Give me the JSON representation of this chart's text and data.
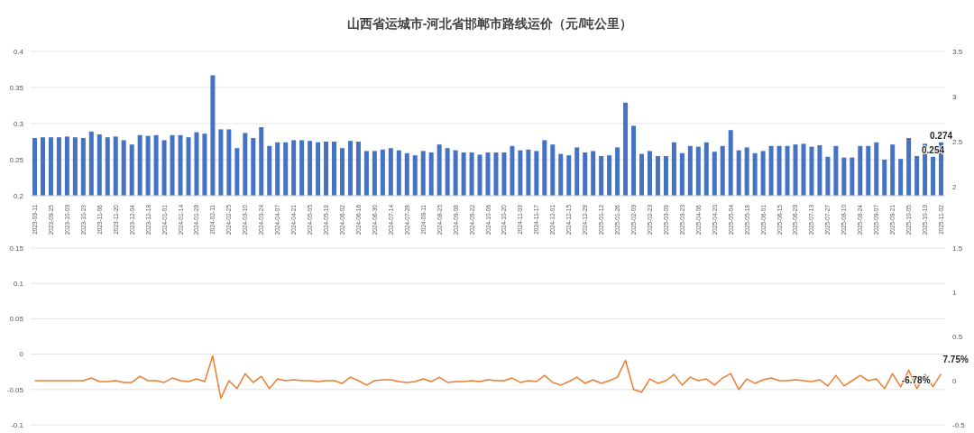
{
  "chart_data": [
    {
      "type": "bar",
      "title": "山西省运城市-河北省邯郸市路线运价（元/吨公里）",
      "categories": [
        "2023-09-11",
        null,
        "2023-09-25",
        null,
        "2023-10-09",
        null,
        "2023-10-23",
        null,
        "2023-11-06",
        null,
        "2023-11-20",
        null,
        "2023-12-04",
        null,
        "2023-12-18",
        null,
        "2024-01-01",
        null,
        "2024-01-14",
        null,
        "2024-01-28",
        null,
        "2024-02-11",
        null,
        "2024-02-25",
        null,
        "2024-03-10",
        null,
        "2024-03-24",
        null,
        "2024-04-07",
        null,
        "2024-04-21",
        null,
        "2024-05-05",
        null,
        "2024-05-19",
        null,
        "2024-06-02",
        null,
        "2024-06-16",
        null,
        "2024-06-30",
        null,
        "2024-07-14",
        null,
        "2024-07-28",
        null,
        "2024-08-11",
        null,
        "2024-08-25",
        null,
        "2024-09-08",
        null,
        "2024-09-22",
        null,
        "2024-10-06",
        null,
        "2024-10-20",
        null,
        "2024-11-03",
        null,
        "2024-11-17",
        null,
        "2024-12-01",
        null,
        "2024-12-15",
        null,
        "2024-12-29",
        null,
        "2025-01-12",
        null,
        "2025-01-26",
        null,
        "2025-02-09",
        null,
        "2025-02-23",
        null,
        "2025-03-09",
        null,
        "2025-03-23",
        null,
        "2025-04-06",
        null,
        "2025-04-20",
        null,
        "2025-05-04",
        null,
        "2025-05-18",
        null,
        "2025-06-01",
        null,
        "2025-06-15",
        null,
        "2025-06-29",
        null,
        "2025-07-13",
        null,
        "2025-07-27",
        null,
        "2025-08-10",
        null,
        "2025-08-24",
        null,
        "2025-09-07",
        null,
        "2025-09-21",
        null,
        "2025-10-05",
        null,
        "2025-10-19",
        null,
        "2025-11-02"
      ],
      "series": [
        {
          "color": "#4472c4",
          "values": [
            0.28,
            0.281,
            0.281,
            0.281,
            0.282,
            0.281,
            0.28,
            0.289,
            0.285,
            0.281,
            0.282,
            0.277,
            0.271,
            0.284,
            0.283,
            0.284,
            0.277,
            0.284,
            0.284,
            0.281,
            0.288,
            0.286,
            0.367,
            0.292,
            0.292,
            0.266,
            0.287,
            0.28,
            0.295,
            0.269,
            0.274,
            0.274,
            0.277,
            0.277,
            0.276,
            0.274,
            0.275,
            0.275,
            0.266,
            0.276,
            0.275,
            0.262,
            0.262,
            0.264,
            0.266,
            0.263,
            0.259,
            0.256,
            0.262,
            0.26,
            0.271,
            0.266,
            0.263,
            0.26,
            0.26,
            0.257,
            0.26,
            0.26,
            0.26,
            0.269,
            0.263,
            0.264,
            0.262,
            0.277,
            0.271,
            0.258,
            0.256,
            0.267,
            0.26,
            0.262,
            0.255,
            0.256,
            0.267,
            0.329,
            0.297,
            0.258,
            0.262,
            0.255,
            0.255,
            0.274,
            0.259,
            0.269,
            0.268,
            0.274,
            0.261,
            0.269,
            0.291,
            0.263,
            0.267,
            0.259,
            0.262,
            0.269,
            0.269,
            0.269,
            0.271,
            0.272,
            0.268,
            0.27,
            0.254,
            0.269,
            0.253,
            0.253,
            0.269,
            0.269,
            0.274,
            0.25,
            0.271,
            0.251,
            0.28,
            0.255,
            0.272,
            0.254,
            0.274
          ],
          "value_labels": [
            null,
            null,
            null,
            null,
            null,
            null,
            null,
            null,
            null,
            null,
            null,
            null,
            null,
            null,
            null,
            null,
            null,
            null,
            null,
            null,
            null,
            null,
            null,
            null,
            null,
            null,
            null,
            null,
            null,
            null,
            null,
            null,
            null,
            null,
            null,
            null,
            null,
            null,
            null,
            null,
            null,
            null,
            null,
            null,
            null,
            null,
            null,
            null,
            null,
            null,
            null,
            null,
            null,
            null,
            null,
            null,
            null,
            null,
            null,
            null,
            null,
            null,
            null,
            null,
            null,
            null,
            null,
            null,
            null,
            null,
            null,
            null,
            null,
            null,
            null,
            null,
            null,
            null,
            null,
            null,
            null,
            null,
            null,
            null,
            null,
            null,
            null,
            null,
            null,
            null,
            null,
            null,
            null,
            null,
            null,
            null,
            null,
            null,
            null,
            null,
            null,
            null,
            null,
            null,
            null,
            null,
            null,
            null,
            null,
            null,
            null,
            "0.254",
            "0.274"
          ]
        }
      ],
      "ylim": [
        0.2,
        0.4
      ],
      "yticks": [
        0.2,
        0.25,
        0.3,
        0.35,
        0.4
      ],
      "y2lim": [
        1.9,
        3.5
      ],
      "y2ticks": [
        2,
        2.5,
        3,
        3.5
      ],
      "grid": "y"
    },
    {
      "type": "line",
      "categories": [
        null,
        null,
        null,
        null,
        null,
        null,
        null,
        null,
        null,
        null,
        null,
        null,
        null,
        null,
        null,
        null,
        null,
        null,
        null,
        null,
        null,
        null,
        null,
        null,
        null,
        null,
        null,
        null,
        null,
        null,
        null,
        null,
        null,
        null,
        null,
        null,
        null,
        null,
        null,
        null,
        null,
        null,
        null,
        null,
        null,
        null,
        null,
        null,
        null,
        null,
        null,
        null,
        null,
        null,
        null,
        null,
        null,
        null,
        null,
        null,
        null,
        null,
        null,
        null,
        null,
        null,
        null,
        null,
        null,
        null,
        null,
        null,
        null,
        null,
        null,
        null,
        null,
        null,
        null,
        null,
        null,
        null,
        null,
        null,
        null,
        null,
        null,
        null,
        null,
        null,
        null,
        null,
        null,
        null,
        null,
        null,
        null,
        null,
        null,
        null,
        null,
        null,
        null,
        null,
        null,
        null,
        null,
        null,
        null,
        null,
        null,
        null,
        null
      ],
      "series": [
        {
          "color": "#ed7d31",
          "axis": "y2",
          "values": [
            0,
            0,
            0,
            0,
            0,
            0,
            0,
            0.03,
            -0.01,
            -0.01,
            0,
            -0.02,
            -0.02,
            0.05,
            0,
            0,
            -0.02,
            0.03,
            0,
            -0.01,
            0.02,
            -0.01,
            0.28,
            -0.2,
            0,
            -0.09,
            0.08,
            -0.02,
            0.05,
            -0.09,
            0.02,
            0,
            0.01,
            0,
            0,
            -0.01,
            0,
            0,
            -0.03,
            0.04,
            0,
            -0.05,
            0,
            0.01,
            0.01,
            -0.01,
            -0.02,
            -0.01,
            0.02,
            -0.01,
            0.04,
            -0.02,
            -0.01,
            -0.01,
            0,
            -0.01,
            0.01,
            0,
            0,
            0.03,
            -0.02,
            0,
            -0.01,
            0.06,
            -0.02,
            -0.05,
            -0.01,
            0.04,
            -0.03,
            0.01,
            -0.03,
            0,
            0.04,
            0.23,
            -0.1,
            -0.13,
            0.02,
            -0.03,
            0,
            0.07,
            -0.05,
            0.04,
            0,
            0.02,
            -0.05,
            0.03,
            0.08,
            -0.1,
            0.02,
            -0.03,
            0.01,
            0.03,
            0,
            0,
            0.01,
            0,
            -0.01,
            0.01,
            -0.06,
            0.06,
            -0.06,
            0,
            0.06,
            0,
            0.02,
            -0.09,
            0.08,
            -0.07,
            0.12,
            -0.09,
            0.07,
            -0.0678,
            0.0775
          ],
          "value_labels": [
            null,
            null,
            null,
            null,
            null,
            null,
            null,
            null,
            null,
            null,
            null,
            null,
            null,
            null,
            null,
            null,
            null,
            null,
            null,
            null,
            null,
            null,
            null,
            null,
            null,
            null,
            null,
            null,
            null,
            null,
            null,
            null,
            null,
            null,
            null,
            null,
            null,
            null,
            null,
            null,
            null,
            null,
            null,
            null,
            null,
            null,
            null,
            null,
            null,
            null,
            null,
            null,
            null,
            null,
            null,
            null,
            null,
            null,
            null,
            null,
            null,
            null,
            null,
            null,
            null,
            null,
            null,
            null,
            null,
            null,
            null,
            null,
            null,
            null,
            null,
            null,
            null,
            null,
            null,
            null,
            null,
            null,
            null,
            null,
            null,
            null,
            null,
            null,
            null,
            null,
            null,
            null,
            null,
            null,
            null,
            null,
            null,
            null,
            null,
            null,
            null,
            null,
            null,
            null,
            null,
            null,
            null,
            null,
            null,
            null,
            null,
            "-6.78%",
            "7.75%"
          ]
        }
      ],
      "ylim": [
        -0.1,
        0.15
      ],
      "yticks": [
        -0.1,
        -0.05,
        0,
        0.05,
        0.1,
        0.15
      ],
      "y2lim": [
        -0.5,
        1.5
      ],
      "y2ticks": [
        -0.5,
        0,
        0.5,
        1,
        1.5
      ],
      "grid": "y"
    }
  ]
}
